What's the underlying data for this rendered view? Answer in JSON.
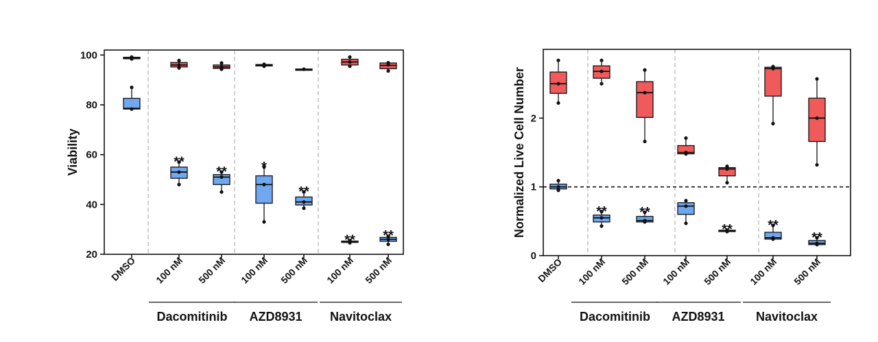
{
  "chart_data": [
    {
      "type": "boxplot",
      "ylabel": "Viability",
      "ylim": [
        20,
        102
      ],
      "yticks": [
        20,
        40,
        60,
        80,
        100
      ],
      "hline": null,
      "categories": [
        "DMSO",
        "100 nM",
        "500 nM",
        "100 nM",
        "500 nM",
        "100 nM",
        "500 nM"
      ],
      "groups": [
        {
          "label": "Dacomitinib",
          "members": [
            1,
            2
          ]
        },
        {
          "label": "AZD8931",
          "members": [
            3,
            4
          ]
        },
        {
          "label": "Navitoclax",
          "members": [
            5,
            6
          ]
        }
      ],
      "colors": {
        "red": "#f05a5a",
        "blue": "#6fa8f0",
        "outline": "#111111",
        "grid": "#b0b0b0"
      },
      "series": [
        {
          "name": "red",
          "boxes": [
            {
              "cat": 0,
              "min": 98.3,
              "q1": 98.5,
              "median": 98.8,
              "q3": 99.1,
              "max": 99.3,
              "points": [
                98.4,
                98.9,
                99.2
              ]
            },
            {
              "cat": 1,
              "min": 94.8,
              "q1": 95.2,
              "median": 96.0,
              "q3": 97.0,
              "max": 97.8,
              "points": [
                94.8,
                96.0,
                97.8
              ]
            },
            {
              "cat": 2,
              "min": 94.3,
              "q1": 94.6,
              "median": 95.2,
              "q3": 96.0,
              "max": 96.8,
              "points": [
                94.3,
                95.2,
                96.8
              ]
            },
            {
              "cat": 3,
              "min": 95.4,
              "q1": 95.6,
              "median": 95.9,
              "q3": 96.2,
              "max": 96.4,
              "points": [
                95.5,
                95.9,
                96.3
              ]
            },
            {
              "cat": 4,
              "min": 94.1,
              "q1": 94.2,
              "median": 94.3,
              "q3": 94.4,
              "max": 94.5,
              "points": [
                94.3
              ]
            },
            {
              "cat": 5,
              "min": 95.5,
              "q1": 96.0,
              "median": 97.2,
              "q3": 98.3,
              "max": 99.2,
              "points": [
                95.5,
                97.2,
                99.2
              ]
            },
            {
              "cat": 6,
              "min": 93.6,
              "q1": 94.5,
              "median": 95.8,
              "q3": 96.8,
              "max": 97.1,
              "points": [
                93.6,
                96.1,
                96.9
              ]
            }
          ]
        },
        {
          "name": "blue",
          "boxes": [
            {
              "cat": 0,
              "min": 78.2,
              "q1": 78.3,
              "median": 78.6,
              "q3": 82.6,
              "max": 87.0,
              "points": [
                78.3,
                87.0
              ]
            },
            {
              "cat": 1,
              "min": 48.0,
              "q1": 50.5,
              "median": 53.0,
              "q3": 55.0,
              "max": 57.0,
              "points": [
                48.0,
                53.0,
                57.0
              ]
            },
            {
              "cat": 2,
              "min": 45.0,
              "q1": 48.0,
              "median": 51.0,
              "q3": 52.0,
              "max": 53.0,
              "points": [
                45.0,
                51.0,
                53.0
              ]
            },
            {
              "cat": 3,
              "min": 33.0,
              "q1": 40.5,
              "median": 48.0,
              "q3": 51.5,
              "max": 55.0,
              "points": [
                33.0,
                48.0,
                55.0
              ]
            },
            {
              "cat": 4,
              "min": 38.5,
              "q1": 39.8,
              "median": 41.0,
              "q3": 43.0,
              "max": 45.0,
              "points": [
                38.5,
                41.0,
                45.0
              ]
            },
            {
              "cat": 5,
              "min": 24.5,
              "q1": 24.8,
              "median": 25.0,
              "q3": 25.3,
              "max": 25.6,
              "points": [
                24.6,
                25.0,
                25.5
              ]
            },
            {
              "cat": 6,
              "min": 24.0,
              "q1": 25.2,
              "median": 26.0,
              "q3": 26.8,
              "max": 27.4,
              "points": [
                24.0,
                26.0,
                27.2
              ]
            }
          ]
        }
      ],
      "significance": [
        {
          "cat": 1,
          "label": "**"
        },
        {
          "cat": 2,
          "label": "**"
        },
        {
          "cat": 3,
          "label": "*"
        },
        {
          "cat": 4,
          "label": "**"
        },
        {
          "cat": 5,
          "label": "**"
        },
        {
          "cat": 6,
          "label": "**"
        }
      ]
    },
    {
      "type": "boxplot",
      "ylabel": "Normalized Live Cell Number",
      "ylim": [
        0,
        3.0
      ],
      "yticks": [
        0,
        1,
        2
      ],
      "hline": 1,
      "categories": [
        "DMSO",
        "100 nM",
        "500 nM",
        "100 nM",
        "500 nM",
        "100 nM",
        "500 nM"
      ],
      "groups": [
        {
          "label": "Dacomitinib",
          "members": [
            1,
            2
          ]
        },
        {
          "label": "AZD8931",
          "members": [
            3,
            4
          ]
        },
        {
          "label": "Navitoclax",
          "members": [
            5,
            6
          ]
        }
      ],
      "colors": {
        "red": "#f05a5a",
        "blue": "#6fa8f0",
        "outline": "#111111",
        "grid": "#b0b0b0"
      },
      "series": [
        {
          "name": "red",
          "boxes": [
            {
              "cat": 0,
              "min": 2.22,
              "q1": 2.36,
              "median": 2.5,
              "q3": 2.67,
              "max": 2.84,
              "points": [
                2.22,
                2.5,
                2.84
              ]
            },
            {
              "cat": 1,
              "min": 2.5,
              "q1": 2.58,
              "median": 2.68,
              "q3": 2.76,
              "max": 2.84,
              "points": [
                2.5,
                2.68,
                2.84
              ]
            },
            {
              "cat": 2,
              "min": 1.66,
              "q1": 2.01,
              "median": 2.37,
              "q3": 2.53,
              "max": 2.7,
              "points": [
                1.66,
                2.37,
                2.7
              ]
            },
            {
              "cat": 3,
              "min": 1.47,
              "q1": 1.48,
              "median": 1.5,
              "q3": 1.6,
              "max": 1.71,
              "points": [
                1.48,
                1.5,
                1.71
              ]
            },
            {
              "cat": 4,
              "min": 1.06,
              "q1": 1.16,
              "median": 1.26,
              "q3": 1.28,
              "max": 1.3,
              "points": [
                1.06,
                1.26,
                1.3
              ]
            },
            {
              "cat": 5,
              "min": 1.92,
              "q1": 2.32,
              "median": 2.72,
              "q3": 2.74,
              "max": 2.75,
              "points": [
                1.92,
                2.72,
                2.75
              ]
            },
            {
              "cat": 6,
              "min": 1.32,
              "q1": 1.66,
              "median": 2.0,
              "q3": 2.29,
              "max": 2.57,
              "points": [
                1.32,
                2.0,
                2.57
              ]
            }
          ]
        },
        {
          "name": "blue",
          "boxes": [
            {
              "cat": 0,
              "min": 0.94,
              "q1": 0.97,
              "median": 1.0,
              "q3": 1.04,
              "max": 1.09,
              "points": [
                0.95,
                1.0,
                1.09
              ]
            },
            {
              "cat": 1,
              "min": 0.43,
              "q1": 0.49,
              "median": 0.55,
              "q3": 0.59,
              "max": 0.64,
              "points": [
                0.43,
                0.55,
                0.64
              ]
            },
            {
              "cat": 2,
              "min": 0.48,
              "q1": 0.49,
              "median": 0.51,
              "q3": 0.57,
              "max": 0.63,
              "points": [
                0.49,
                0.51,
                0.63
              ]
            },
            {
              "cat": 3,
              "min": 0.47,
              "q1": 0.6,
              "median": 0.72,
              "q3": 0.77,
              "max": 0.8,
              "points": [
                0.47,
                0.72,
                0.8
              ]
            },
            {
              "cat": 4,
              "min": 0.35,
              "q1": 0.35,
              "median": 0.36,
              "q3": 0.37,
              "max": 0.38,
              "points": [
                0.35,
                0.36,
                0.37
              ]
            },
            {
              "cat": 5,
              "min": 0.24,
              "q1": 0.24,
              "median": 0.26,
              "q3": 0.34,
              "max": 0.44,
              "points": [
                0.24,
                0.26,
                0.44
              ]
            },
            {
              "cat": 6,
              "min": 0.16,
              "q1": 0.16,
              "median": 0.18,
              "q3": 0.22,
              "max": 0.26,
              "points": [
                0.16,
                0.18,
                0.26
              ]
            }
          ]
        }
      ],
      "significance": [
        {
          "cat": 1,
          "label": "**"
        },
        {
          "cat": 2,
          "label": "**"
        },
        {
          "cat": 4,
          "label": "**"
        },
        {
          "cat": 5,
          "label": "**"
        },
        {
          "cat": 6,
          "label": "**"
        }
      ]
    }
  ]
}
